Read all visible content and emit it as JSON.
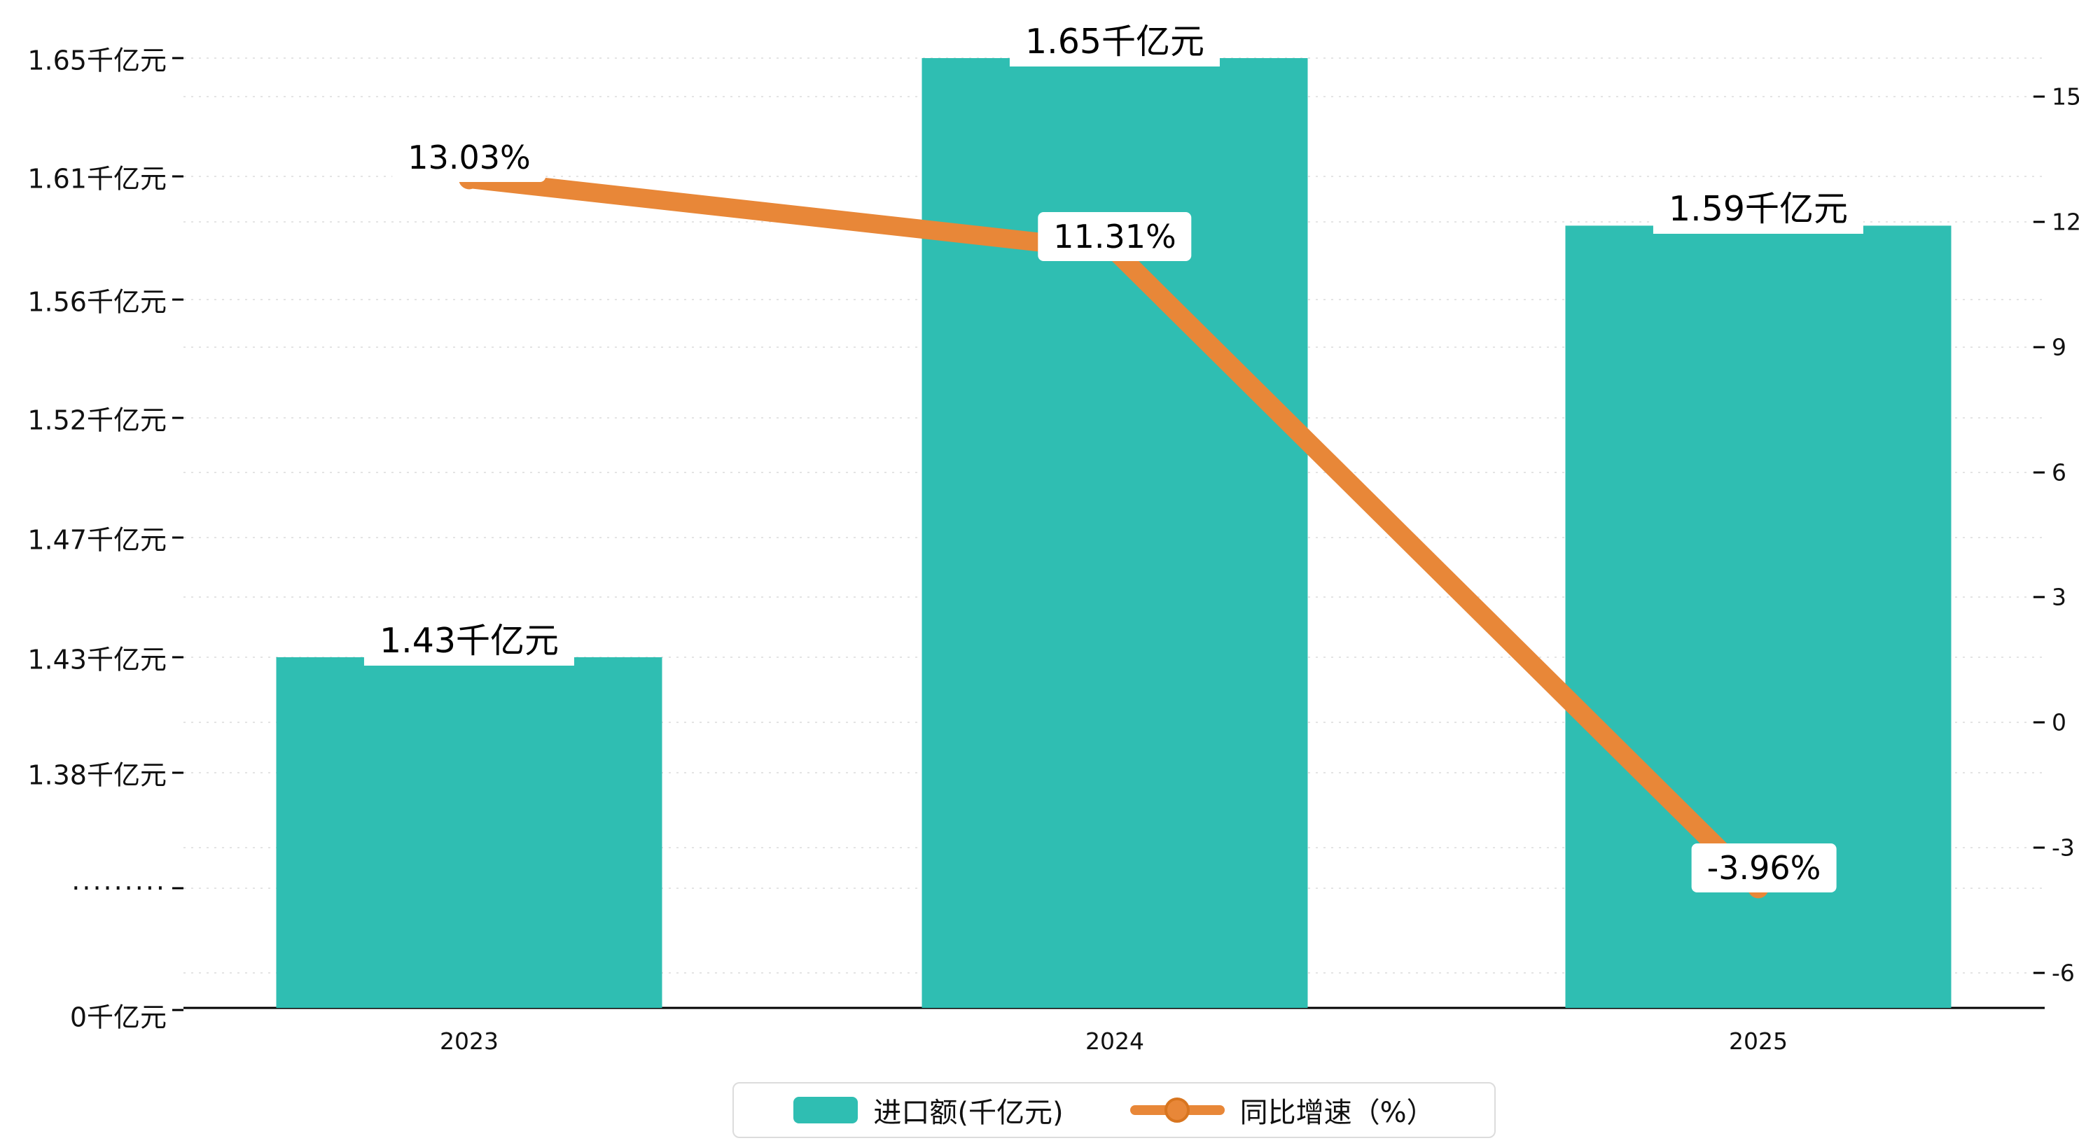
{
  "chart_data": {
    "type": "bar+line",
    "categories": [
      "2023",
      "2024",
      "2025"
    ],
    "series": [
      {
        "name": "进口额(千亿元)",
        "type": "bar",
        "values": [
          1.43,
          1.65,
          1.59
        ],
        "labels": [
          "1.43千亿元",
          "1.65千亿元",
          "1.59千亿元"
        ],
        "color": "#2FBEB2"
      },
      {
        "name": "同比增速（%）",
        "type": "line",
        "values": [
          13.03,
          11.31,
          -3.96
        ],
        "labels": [
          "13.03%",
          "11.31%",
          "-3.96%"
        ],
        "color": "#E88738"
      }
    ],
    "left_axis": {
      "unit": "千亿元",
      "ticks": [
        {
          "label": "1.65千亿元",
          "value": 1.65
        },
        {
          "label": "1.61千亿元",
          "value": 1.61
        },
        {
          "label": "1.56千亿元",
          "value": 1.56
        },
        {
          "label": "1.52千亿元",
          "value": 1.52
        },
        {
          "label": "1.47千亿元",
          "value": 1.47
        },
        {
          "label": "1.43千亿元",
          "value": 1.43
        },
        {
          "label": "1.38千亿元",
          "value": 1.38
        },
        {
          "label": "·········",
          "value": null
        },
        {
          "label": "0千亿元",
          "value": 0
        }
      ],
      "axis_break": true
    },
    "right_axis": {
      "ticks": [
        15,
        12,
        9,
        6,
        3,
        0,
        -3,
        -6
      ],
      "min": -6,
      "max": 15
    },
    "legend": [
      {
        "label": "进口额(千亿元)",
        "marker": "bar-swatch",
        "color": "#2FBEB2"
      },
      {
        "label": "同比增速（%）",
        "marker": "line-dot-swatch",
        "color": "#E88738"
      }
    ],
    "grid": true,
    "legend_position": "bottom-center"
  },
  "colors": {
    "bar": "#2FBEB2",
    "line": "#E88738",
    "line_dot_ring": "#D8751F",
    "grid": "#E4E4E4",
    "axis": "#000000",
    "text": "#111111",
    "label_bg": "#FFFFFF",
    "legend_border": "#DCDCDC"
  }
}
